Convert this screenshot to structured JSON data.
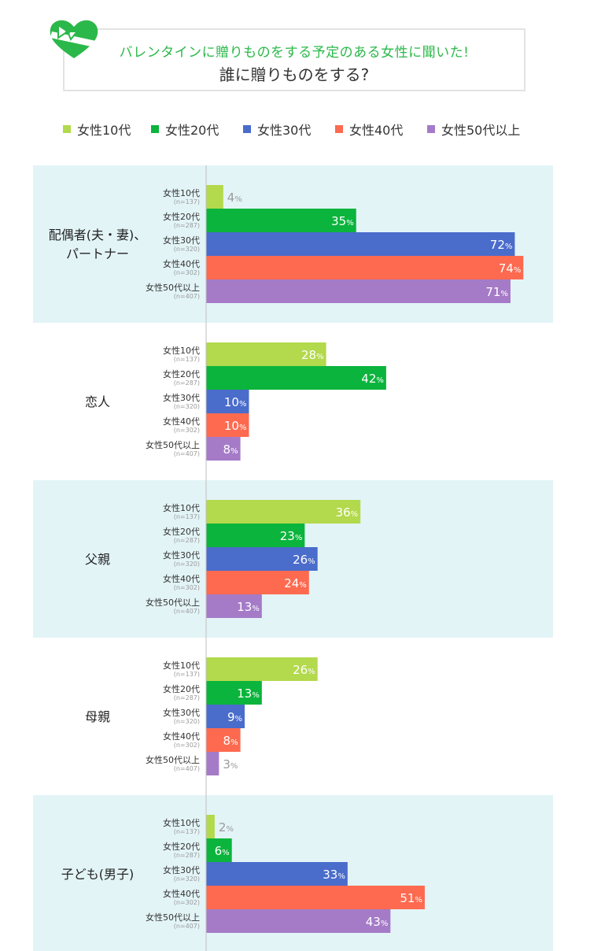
{
  "header": {
    "subtitle": "バレンタインに贈りものをする予定のある女性に聞いた!",
    "title": "誰に贈りものをする?"
  },
  "colors": {
    "accent_green": "#2bb84a",
    "panel_bg": "#e3f4f7",
    "axis_line": "#bfbfbf",
    "value_outside": "#9a9a9a"
  },
  "icons": [
    "heart-ribbon-icon"
  ],
  "chart_data": {
    "type": "bar",
    "orientation": "horizontal",
    "unit": "%",
    "xlim": [
      0,
      78
    ],
    "legend_position": "top",
    "series": [
      {
        "name": "女性10代",
        "label": "女性10代",
        "n": "(n=137)",
        "color": "#b3d94c",
        "values": [
          4,
          28,
          36,
          26,
          2
        ]
      },
      {
        "name": "女性20代",
        "label": "女性20代",
        "n": "(n=287)",
        "color": "#0bb43c",
        "values": [
          35,
          42,
          23,
          13,
          6
        ]
      },
      {
        "name": "女性30代",
        "label": "女性30代",
        "n": "(n=320)",
        "color": "#4a6ccb",
        "values": [
          72,
          10,
          26,
          9,
          33
        ]
      },
      {
        "name": "女性40代",
        "label": "女性40代",
        "n": "(n=302)",
        "color": "#fd6a50",
        "values": [
          74,
          10,
          24,
          8,
          51
        ]
      },
      {
        "name": "女性50代以上",
        "label": "女性50代以上",
        "n": "(n=407)",
        "color": "#a57bc8",
        "values": [
          71,
          8,
          13,
          3,
          43
        ]
      }
    ],
    "categories": [
      {
        "label_lines": [
          "配偶者(夫・妻)、",
          "パートナー"
        ],
        "shaded": true
      },
      {
        "label_lines": [
          "恋人"
        ],
        "shaded": false
      },
      {
        "label_lines": [
          "父親"
        ],
        "shaded": true
      },
      {
        "label_lines": [
          "母親"
        ],
        "shaded": false
      },
      {
        "label_lines": [
          "子ども(男子)"
        ],
        "shaded": true
      }
    ]
  }
}
